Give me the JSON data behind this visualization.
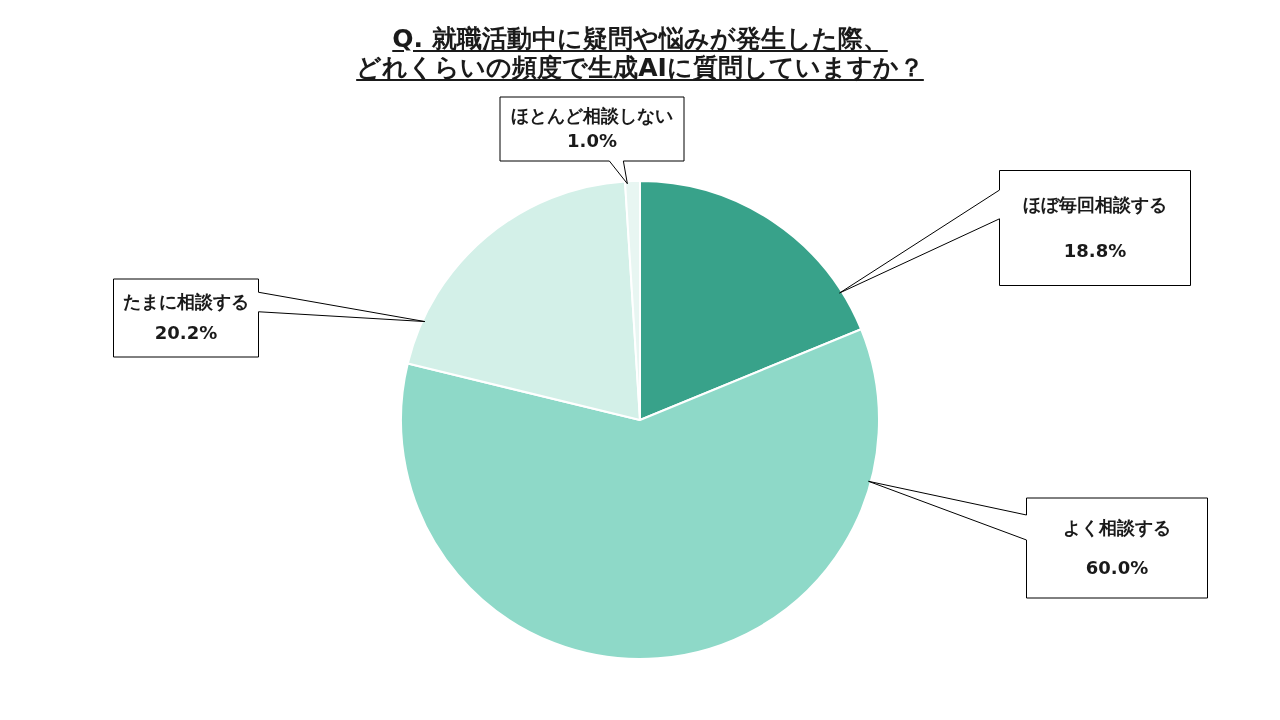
{
  "chart_data": {
    "type": "pie",
    "title": "Q. 就職活動中に疑問や悩みが発生した際、どれくらいの頻度で生成AIに質問していますか？",
    "categories": [
      "ほぼ毎回相談する",
      "よく相談する",
      "たまに相談する",
      "ほとんど相談しない"
    ],
    "values": [
      18.8,
      60.0,
      20.2,
      1.0
    ],
    "colors": [
      "#38a28a",
      "#8ed9c8",
      "#d3f0e8",
      "#e8f6f2"
    ],
    "value_labels": [
      "18.8%",
      "60.0%",
      "20.2%",
      "1.0%"
    ],
    "legend": false
  }
}
